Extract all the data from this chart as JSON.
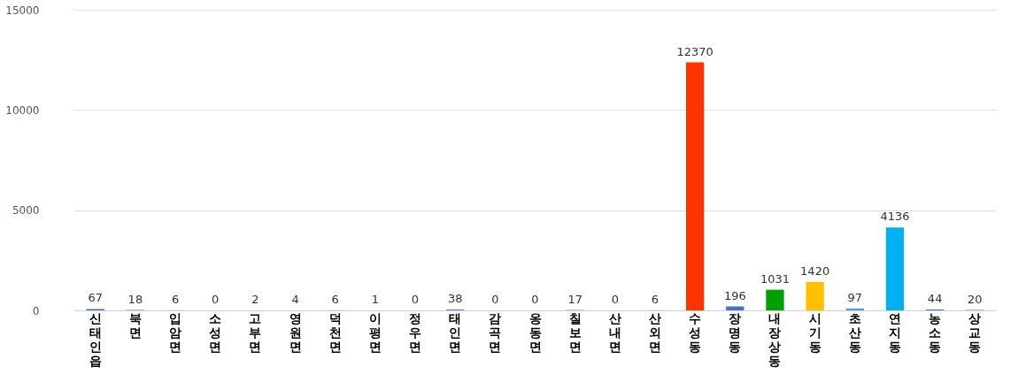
{
  "chart_data": {
    "type": "bar",
    "categories": [
      "신태인읍",
      "북면",
      "입암면",
      "소성면",
      "고부면",
      "영원면",
      "덕천면",
      "이평면",
      "정우면",
      "태인면",
      "감곡면",
      "옹동면",
      "칠보면",
      "산내면",
      "산외면",
      "수성동",
      "장명동",
      "내장상동",
      "시기동",
      "초산동",
      "연지동",
      "농소동",
      "상교동"
    ],
    "values": [
      67,
      18,
      6,
      0,
      2,
      4,
      6,
      1,
      0,
      38,
      0,
      0,
      17,
      0,
      6,
      12370,
      196,
      1031,
      1420,
      97,
      4136,
      44,
      20
    ],
    "colors": [
      "#4472c4",
      "#4472c4",
      "#4472c4",
      "#4472c4",
      "#4472c4",
      "#4472c4",
      "#4472c4",
      "#4472c4",
      "#4472c4",
      "#4472c4",
      "#4472c4",
      "#4472c4",
      "#4472c4",
      "#4472c4",
      "#4472c4",
      "#ff3300",
      "#4472c4",
      "#00a000",
      "#ffc000",
      "#5b9bd5",
      "#00b0f0",
      "#4472c4",
      "#4472c4"
    ],
    "ylim": [
      0,
      15000
    ],
    "yticks": [
      0,
      5000,
      10000,
      15000
    ],
    "grid": "y",
    "data_labels": true
  }
}
